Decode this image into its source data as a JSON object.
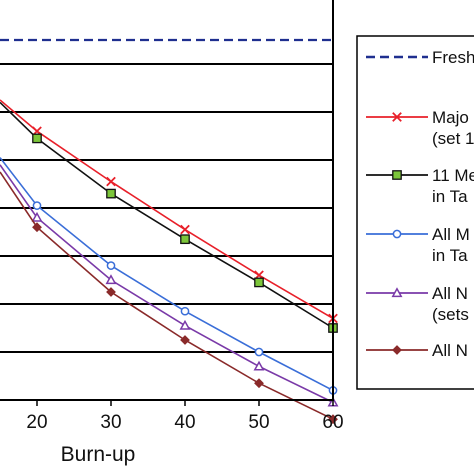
{
  "chart_data": {
    "type": "line",
    "title": "",
    "xlabel": "Burn-up",
    "ylabel": "",
    "x_ticks": [
      "20",
      "30",
      "40",
      "50",
      "60"
    ],
    "xlim": [
      15,
      60
    ],
    "ylim": [
      0,
      8
    ],
    "grid": "horizontal",
    "legend_position": "right",
    "series": [
      {
        "name": "Fresh",
        "color": "#1f2f8f",
        "style": "dashed",
        "marker": "none",
        "x": [
          15,
          60
        ],
        "y": [
          7.5,
          7.5
        ]
      },
      {
        "name": "Majo",
        "subtext": "(set 1",
        "color": "#e8202a",
        "style": "solid",
        "marker": "x",
        "x": [
          15,
          20,
          30,
          40,
          50,
          60
        ],
        "y": [
          6.25,
          5.6,
          4.55,
          3.55,
          2.6,
          1.7
        ]
      },
      {
        "name": "11 Me",
        "subtext": "in Ta",
        "color": "#111111",
        "marker_fill": "#7cc63a",
        "style": "solid",
        "marker": "square",
        "x": [
          15,
          20,
          30,
          40,
          50,
          60
        ],
        "y": [
          6.2,
          5.45,
          4.3,
          3.35,
          2.45,
          1.5
        ]
      },
      {
        "name": "All M",
        "subtext": "in Ta",
        "color": "#3a6ed8",
        "style": "solid",
        "marker": "circle-open",
        "x": [
          15,
          20,
          30,
          40,
          50,
          60
        ],
        "y": [
          5.05,
          4.05,
          2.8,
          1.85,
          1.0,
          0.2
        ]
      },
      {
        "name": "All N",
        "subtext": "(sets",
        "color": "#7a3aa8",
        "style": "solid",
        "marker": "triangle-open",
        "x": [
          15,
          20,
          30,
          40,
          50,
          60
        ],
        "y": [
          4.9,
          3.8,
          2.5,
          1.55,
          0.7,
          -0.05
        ]
      },
      {
        "name": "All N",
        "subtext": "",
        "color": "#8a2a2a",
        "style": "solid",
        "marker": "diamond",
        "x": [
          15,
          20,
          30,
          40,
          50,
          60
        ],
        "y": [
          4.75,
          3.6,
          2.25,
          1.25,
          0.35,
          -0.4
        ]
      }
    ]
  }
}
